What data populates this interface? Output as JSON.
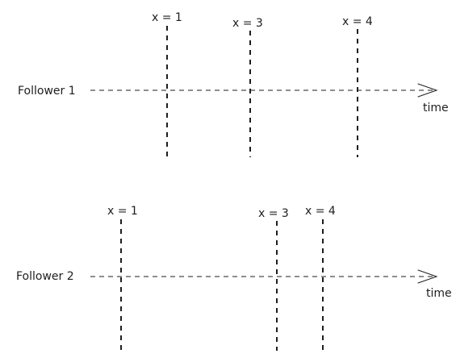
{
  "timelines": [
    {
      "label": "Follower 1",
      "axis_label": "time",
      "events": [
        {
          "label": "x = 1"
        },
        {
          "label": "x = 3"
        },
        {
          "label": "x = 4"
        }
      ]
    },
    {
      "label": "Follower 2",
      "axis_label": "time",
      "events": [
        {
          "label": "x = 1"
        },
        {
          "label": "x = 3"
        },
        {
          "label": "x = 4"
        }
      ]
    }
  ],
  "colors": {
    "ink": "#1e1e1e",
    "background": "#ffffff"
  }
}
